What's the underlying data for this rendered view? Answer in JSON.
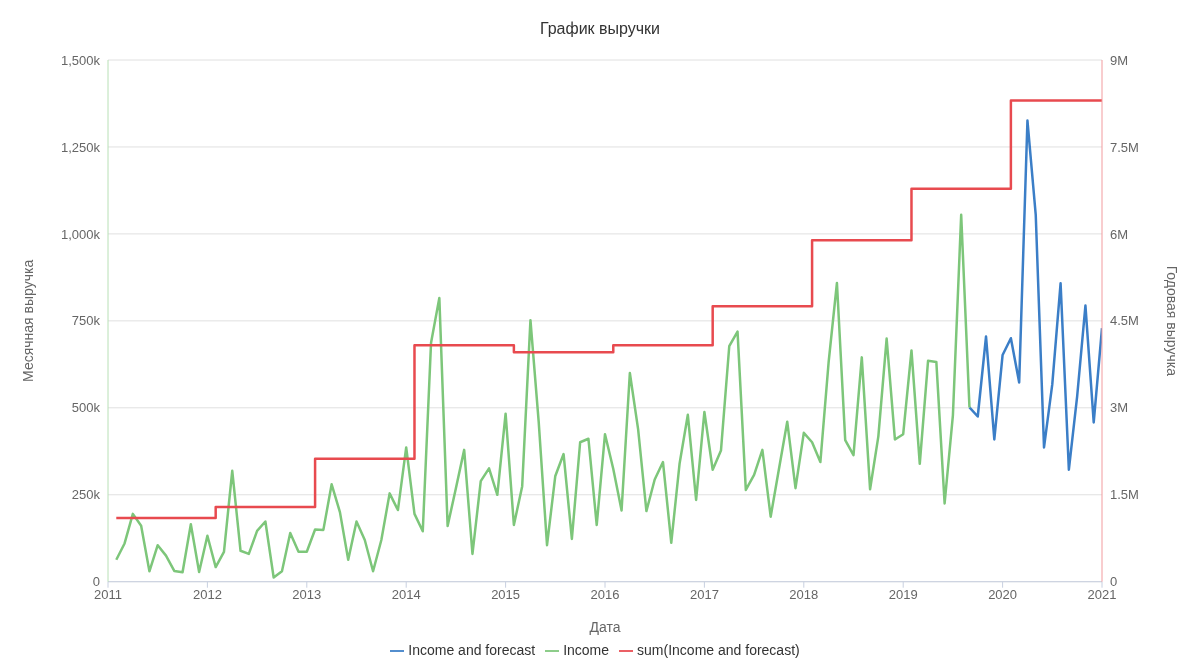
{
  "chart_data": {
    "type": "line",
    "title": "График выручки",
    "xlabel": "Дата",
    "ylabel": "Месячная выручка",
    "y2label": "Годовая выручка",
    "xlim": [
      "2011",
      "2021"
    ],
    "xticks": [
      "2011",
      "2012",
      "2013",
      "2014",
      "2015",
      "2016",
      "2017",
      "2018",
      "2019",
      "2020",
      "2021"
    ],
    "ylim": [
      0,
      1500000
    ],
    "yticks": [
      {
        "value": 0,
        "label": "0"
      },
      {
        "value": 250000,
        "label": "250k"
      },
      {
        "value": 500000,
        "label": "500k"
      },
      {
        "value": 750000,
        "label": "750k"
      },
      {
        "value": 1000000,
        "label": "1,000k"
      },
      {
        "value": 1250000,
        "label": "1,250k"
      },
      {
        "value": 1500000,
        "label": "1,500k"
      }
    ],
    "y2lim": [
      0,
      9000000
    ],
    "y2ticks": [
      {
        "value": 0,
        "label": "0"
      },
      {
        "value": 1500000,
        "label": "1.5M"
      },
      {
        "value": 3000000,
        "label": "3M"
      },
      {
        "value": 4500000,
        "label": "4.5M"
      },
      {
        "value": 6000000,
        "label": "6M"
      },
      {
        "value": 7500000,
        "label": "7.5M"
      },
      {
        "value": 9000000,
        "label": "9M"
      }
    ],
    "grid": "y",
    "legend": "bottom",
    "marker": "none",
    "series": [
      {
        "name": "Income and forecast",
        "color": "#3b7ec7",
        "x": [
          "2019-09",
          "2019-10",
          "2019-11",
          "2019-12",
          "2020-01",
          "2020-02",
          "2020-03",
          "2020-04",
          "2020-05",
          "2020-06",
          "2020-07",
          "2020-08",
          "2020-09",
          "2020-10",
          "2020-11",
          "2020-12",
          "2021-01"
        ],
        "values": [
          501000,
          475000,
          705000,
          409000,
          652000,
          700000,
          573000,
          1326000,
          1055000,
          386000,
          568000,
          858000,
          322000,
          533000,
          794000,
          458000,
          729000
        ]
      },
      {
        "name": "Income",
        "color": "#7dc67a",
        "x": [
          "2011-02",
          "2011-03",
          "2011-04",
          "2011-05",
          "2011-06",
          "2011-07",
          "2011-08",
          "2011-09",
          "2011-10",
          "2011-11",
          "2011-12",
          "2012-01",
          "2012-02",
          "2012-03",
          "2012-04",
          "2012-05",
          "2012-06",
          "2012-07",
          "2012-08",
          "2012-09",
          "2012-10",
          "2012-11",
          "2012-12",
          "2013-01",
          "2013-02",
          "2013-03",
          "2013-04",
          "2013-05",
          "2013-06",
          "2013-07",
          "2013-08",
          "2013-09",
          "2013-10",
          "2013-11",
          "2013-12",
          "2014-01",
          "2014-02",
          "2014-03",
          "2014-04",
          "2014-05",
          "2014-06",
          "2014-07",
          "2014-08",
          "2014-09",
          "2014-10",
          "2014-11",
          "2014-12",
          "2015-01",
          "2015-02",
          "2015-03",
          "2015-04",
          "2015-05",
          "2015-06",
          "2015-07",
          "2015-08",
          "2015-09",
          "2015-10",
          "2015-11",
          "2015-12",
          "2016-01",
          "2016-02",
          "2016-03",
          "2016-04",
          "2016-05",
          "2016-06",
          "2016-07",
          "2016-08",
          "2016-09",
          "2016-10",
          "2016-11",
          "2016-12",
          "2017-01",
          "2017-02",
          "2017-03",
          "2017-04",
          "2017-05",
          "2017-06",
          "2017-07",
          "2017-08",
          "2017-09",
          "2017-10",
          "2017-11",
          "2017-12",
          "2018-01",
          "2018-02",
          "2018-03",
          "2018-04",
          "2018-05",
          "2018-06",
          "2018-07",
          "2018-08",
          "2018-09",
          "2018-10",
          "2018-11",
          "2018-12",
          "2019-01",
          "2019-02",
          "2019-03",
          "2019-04",
          "2019-05",
          "2019-06",
          "2019-07",
          "2019-08",
          "2019-09"
        ],
        "values": [
          63000,
          110000,
          195000,
          161000,
          30000,
          105000,
          75000,
          31000,
          27000,
          165000,
          28000,
          132000,
          42000,
          86000,
          319000,
          89000,
          80000,
          146000,
          173000,
          12000,
          30000,
          140000,
          86000,
          86000,
          150000,
          149000,
          280000,
          200000,
          63000,
          173000,
          120000,
          30000,
          120000,
          254000,
          206000,
          386000,
          195000,
          145000,
          687000,
          816000,
          160000,
          269000,
          379000,
          80000,
          289000,
          326000,
          250000,
          483000,
          163000,
          274000,
          752000,
          458000,
          105000,
          304000,
          367000,
          123000,
          401000,
          411000,
          163000,
          424000,
          324000,
          205000,
          600000,
          438000,
          203000,
          294000,
          344000,
          112000,
          339000,
          480000,
          235000,
          488000,
          322000,
          377000,
          677000,
          719000,
          264000,
          307000,
          379000,
          187000,
          324000,
          460000,
          269000,
          428000,
          401000,
          344000,
          632000,
          859000,
          407000,
          364000,
          645000,
          266000,
          418000,
          699000,
          409000,
          424000,
          665000,
          339000,
          635000,
          632000,
          225000,
          478000,
          1055000,
          501000
        ]
      },
      {
        "name": "sum(Income and forecast)",
        "color": "#e84a4f",
        "type": "step",
        "axis": "y2",
        "x": [
          "2011-02",
          "2012-02",
          "2013-02",
          "2014-02",
          "2015-02",
          "2016-02",
          "2017-02",
          "2018-02",
          "2019-02",
          "2020-02",
          "2021-01"
        ],
        "values": [
          1100000,
          1290000,
          2120000,
          4080000,
          3960000,
          4080000,
          4750000,
          5890000,
          6780000,
          8300000,
          8300000
        ]
      }
    ]
  }
}
